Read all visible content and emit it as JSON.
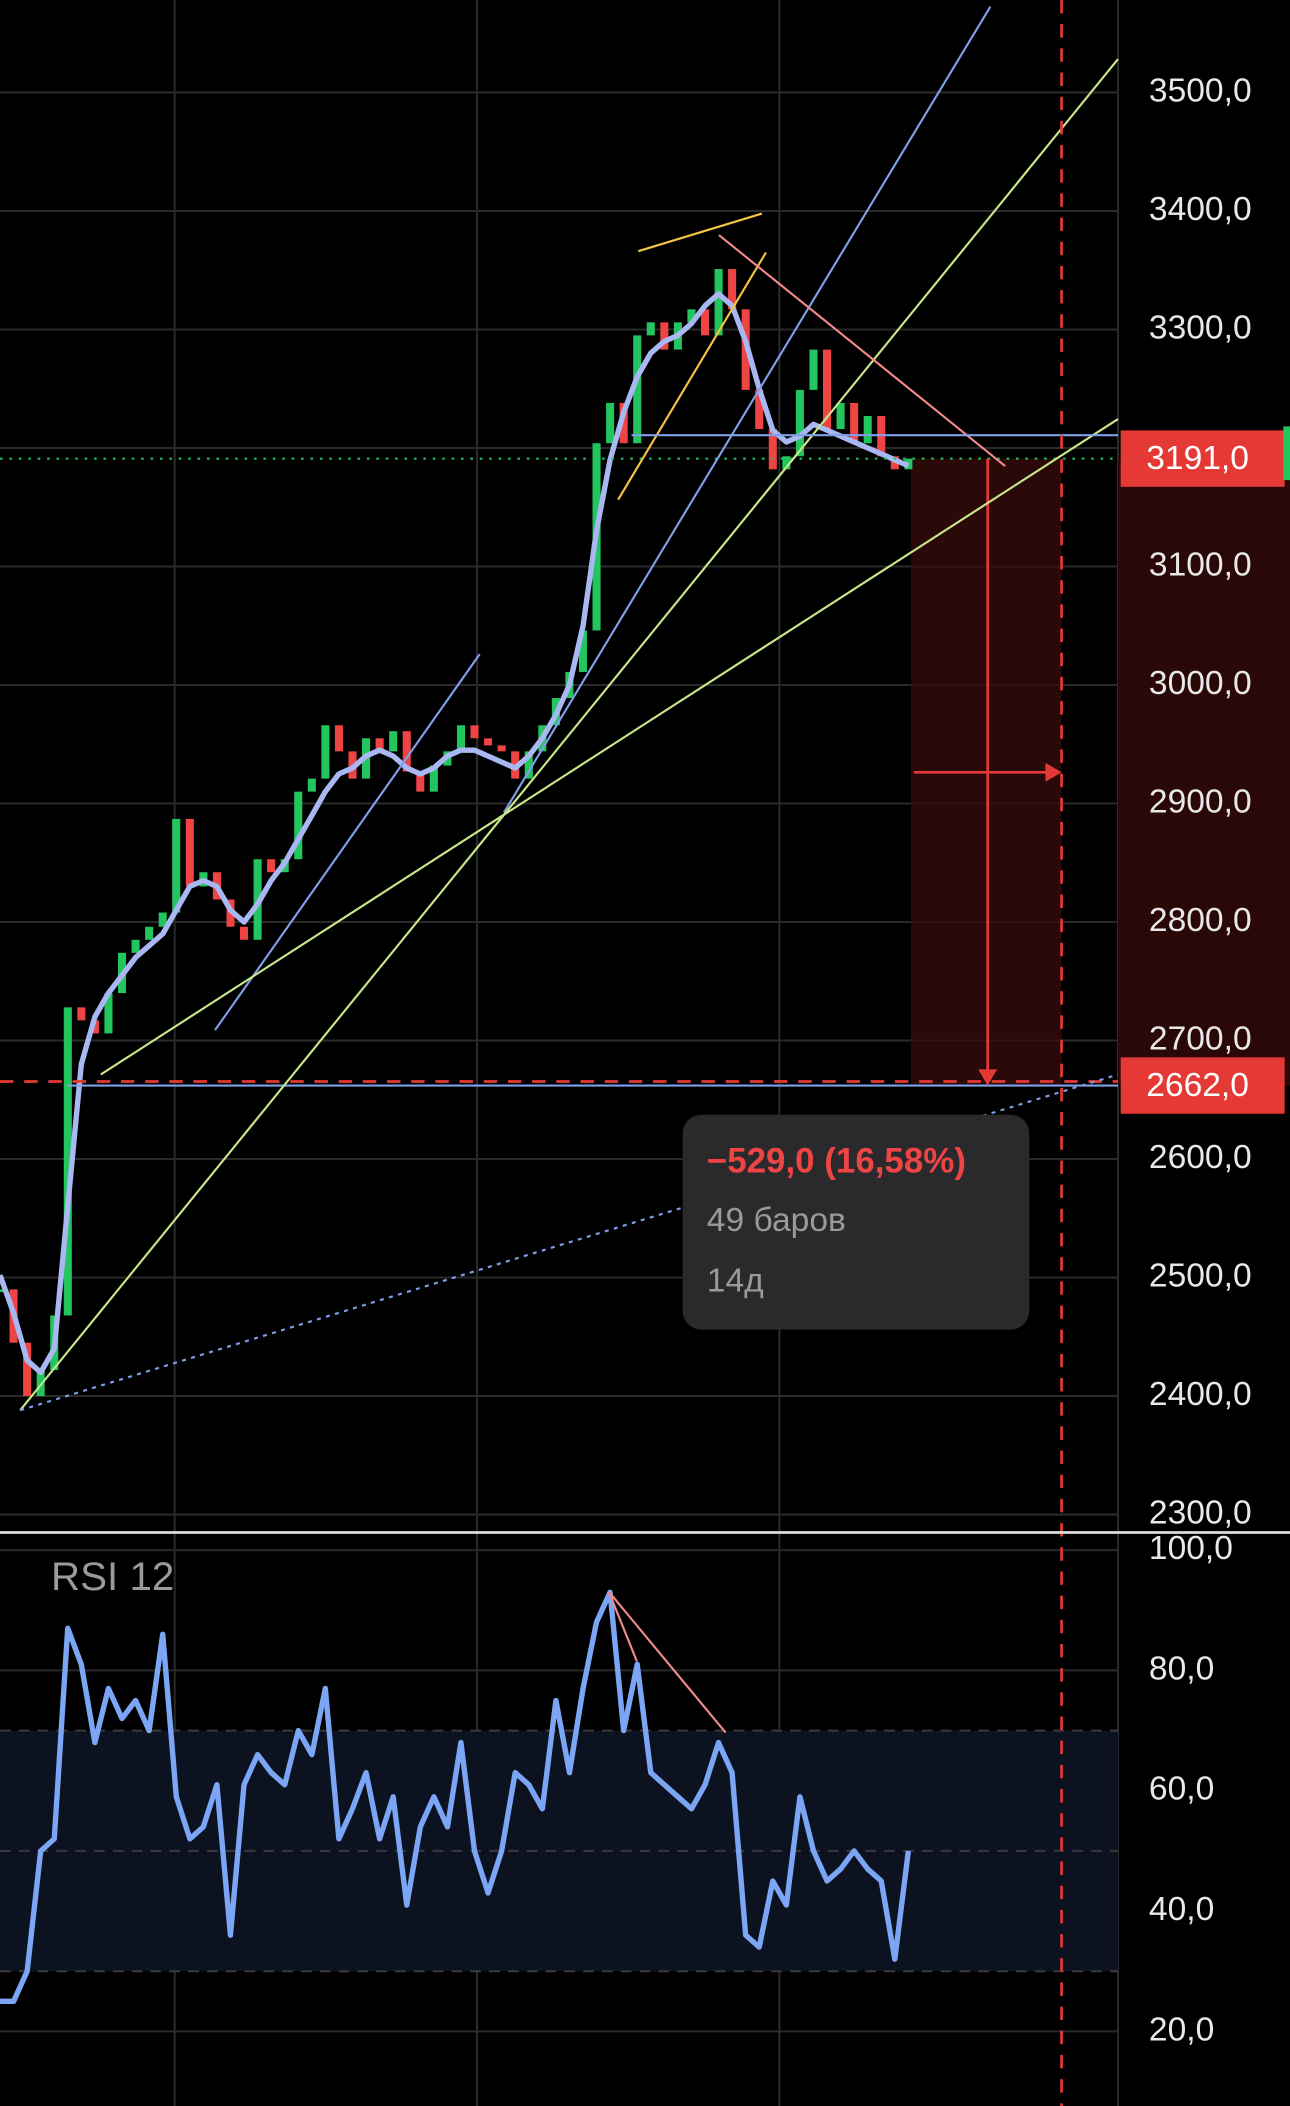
{
  "chart_data": [
    {
      "type": "candlestick",
      "values": [
        2490,
        2445,
        2400,
        2422,
        2468,
        2728,
        2717,
        2706,
        2740,
        2774,
        2785,
        2796,
        2808,
        2887,
        2830,
        2842,
        2819,
        2796,
        2785,
        2853,
        2842,
        2853,
        2910,
        2921,
        2966,
        2944,
        2921,
        2955,
        2944,
        2961,
        2927,
        2910,
        2932,
        2944,
        2966,
        2955,
        2949,
        2944,
        2921,
        2944,
        2966,
        2989,
        3011,
        3046,
        3204,
        3238,
        3204,
        3295,
        3306,
        3283,
        3306,
        3317,
        3295,
        3351,
        3317,
        3249,
        3216,
        3182,
        3193,
        3249,
        3283,
        3216,
        3238,
        3204,
        3227,
        3193,
        3182,
        3191
      ],
      "up_color": "#22c55e",
      "down_color": "#ef4444",
      "series": [
        {
          "color": "#a9b8f2",
          "values": [
            2502,
            2470,
            2430,
            2420,
            2440,
            2560,
            2680,
            2720,
            2740,
            2755,
            2770,
            2780,
            2790,
            2810,
            2830,
            2835,
            2830,
            2810,
            2800,
            2815,
            2835,
            2850,
            2870,
            2890,
            2910,
            2925,
            2930,
            2940,
            2945,
            2940,
            2930,
            2925,
            2930,
            2940,
            2945,
            2945,
            2940,
            2935,
            2930,
            2940,
            2955,
            2975,
            3000,
            3050,
            3130,
            3190,
            3230,
            3260,
            3280,
            3290,
            3295,
            3305,
            3320,
            3330,
            3320,
            3290,
            3250,
            3215,
            3205,
            3210,
            3220,
            3215,
            3210,
            3205,
            3200,
            3195,
            3190,
            3185
          ]
        }
      ],
      "ylim": [
        2286,
        3578
      ],
      "yticks": [
        {
          "value": 2300,
          "label": "2300,0"
        },
        {
          "value": 2400,
          "label": "2400,0"
        },
        {
          "value": 2500,
          "label": "2500,0"
        },
        {
          "value": 2600,
          "label": "2600,0"
        },
        {
          "value": 2700,
          "label": "2700,0"
        },
        {
          "value": 2800,
          "label": "2800,0"
        },
        {
          "value": 2900,
          "label": "2900,0"
        },
        {
          "value": 3000,
          "label": "3000,0"
        },
        {
          "value": 3100,
          "label": "3100,0"
        },
        {
          "value": 3200,
          "label": "3200,0"
        },
        {
          "value": 3300,
          "label": "3300,0"
        },
        {
          "value": 3400,
          "label": "3400,0"
        },
        {
          "value": 3500,
          "label": "3500,0"
        }
      ],
      "grid": true,
      "price_tags": [
        {
          "value": 3191,
          "label": "3191,0"
        },
        {
          "value": 2662,
          "label": "2662,0"
        }
      ],
      "measure": {
        "change": "−529,0 (16,58%)",
        "bars": "49 баров",
        "duration": "14д"
      }
    },
    {
      "type": "line",
      "title": "RSI 12",
      "series": [
        {
          "color": "#7aa6f5",
          "values": [
            25,
            25,
            30,
            50,
            52,
            87,
            81,
            68,
            77,
            72,
            75,
            70,
            86,
            59,
            52,
            54,
            61,
            36,
            61,
            66,
            63,
            61,
            70,
            66,
            77,
            52,
            57,
            63,
            52,
            59,
            41,
            54,
            59,
            54,
            68,
            50,
            43,
            50,
            63,
            61,
            57,
            75,
            63,
            77,
            88,
            93,
            70,
            81,
            63,
            61,
            59,
            57,
            61,
            68,
            63,
            36,
            34,
            45,
            41,
            59,
            50,
            45,
            47,
            50,
            47,
            45,
            32,
            50
          ]
        }
      ],
      "ylim": [
        7.6,
        102.7
      ],
      "yticks": [
        {
          "value": 20,
          "label": "20,0"
        },
        {
          "value": 40,
          "label": "40,0"
        },
        {
          "value": 60,
          "label": "60,0"
        },
        {
          "value": 80,
          "label": "80,0"
        },
        {
          "value": 100,
          "label": "100,0"
        }
      ],
      "band": [
        30,
        70
      ],
      "midline": 50
    }
  ]
}
